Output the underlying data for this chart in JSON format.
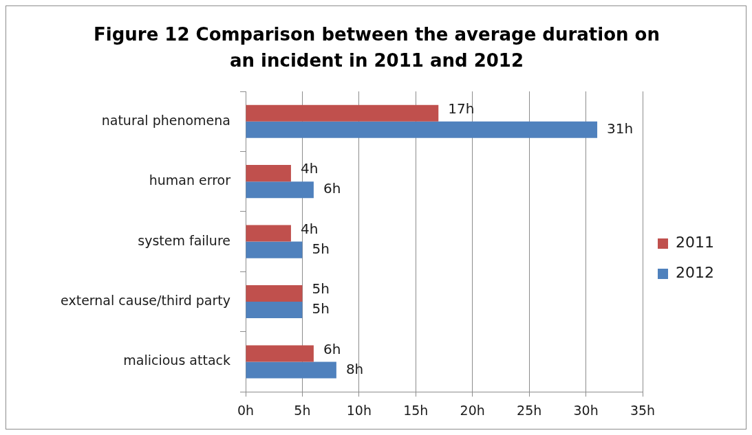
{
  "chart_data": {
    "type": "bar",
    "orientation": "horizontal",
    "title": "Figure 12 Comparison between the average duration on an incident in 2011 and 2012",
    "categories": [
      "natural phenomena",
      "human error",
      "system failure",
      "external cause/third party",
      "malicious attack"
    ],
    "series": [
      {
        "name": "2011",
        "color": "#c0504d",
        "values": [
          17,
          4,
          4,
          5,
          6
        ],
        "value_labels": [
          "17h",
          "4h",
          "4h",
          "5h",
          "6h"
        ]
      },
      {
        "name": "2012",
        "color": "#4f81bd",
        "values": [
          31,
          6,
          5,
          5,
          8
        ],
        "value_labels": [
          "31h",
          "6h",
          "5h",
          "5h",
          "8h"
        ]
      }
    ],
    "xlim": [
      0,
      35
    ],
    "xticks": [
      {
        "value": 0,
        "label": "0h"
      },
      {
        "value": 5,
        "label": "5h"
      },
      {
        "value": 10,
        "label": "10h"
      },
      {
        "value": 15,
        "label": "15h"
      },
      {
        "value": 20,
        "label": "20h"
      },
      {
        "value": 25,
        "label": "25h"
      },
      {
        "value": 30,
        "label": "30h"
      },
      {
        "value": 35,
        "label": "35h"
      }
    ],
    "grid": "x",
    "legend": "right"
  }
}
